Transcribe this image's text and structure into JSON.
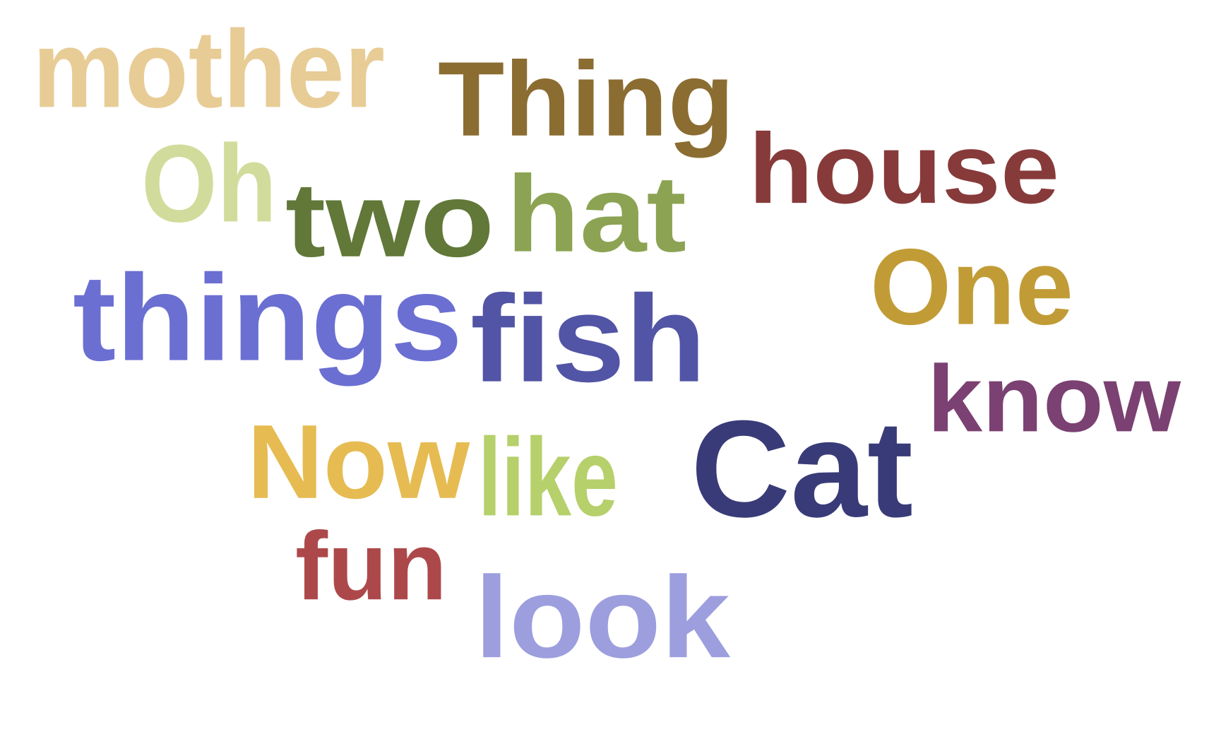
{
  "words": [
    {
      "text": "mother",
      "color": "#e8cc96"
    },
    {
      "text": "Thing",
      "color": "#8b6d32"
    },
    {
      "text": "house",
      "color": "#873a3a"
    },
    {
      "text": "Oh",
      "color": "#d1dc9c"
    },
    {
      "text": "two",
      "color": "#617839"
    },
    {
      "text": "hat",
      "color": "#8ca353"
    },
    {
      "text": "One",
      "color": "#c19c36"
    },
    {
      "text": "things",
      "color": "#6b6fd2"
    },
    {
      "text": "fish",
      "color": "#5254a5"
    },
    {
      "text": "know",
      "color": "#7b4172"
    },
    {
      "text": "Now",
      "color": "#e6bb52"
    },
    {
      "text": "like",
      "color": "#b6d06b"
    },
    {
      "text": "Cat",
      "color": "#393b78"
    },
    {
      "text": "fun",
      "color": "#ad484a"
    },
    {
      "text": "look",
      "color": "#9c9ede"
    }
  ]
}
